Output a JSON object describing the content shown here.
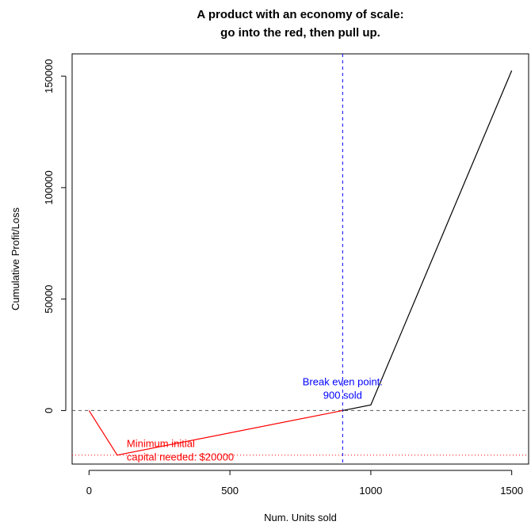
{
  "chart_data": {
    "type": "line",
    "title": "A product with an economy of scale:",
    "subtitle": "go into the red, then pull up.",
    "xlabel": "Num. Units sold",
    "ylabel": "Cumulative Profit/Loss",
    "xlim": [
      -60,
      1560
    ],
    "ylim": [
      -24000,
      160000
    ],
    "xticks": [
      0,
      500,
      1000,
      1500
    ],
    "yticks": [
      0,
      50000,
      100000,
      150000
    ],
    "grid": false,
    "series": [
      {
        "color": "#ff0000",
        "points": [
          [
            0,
            0
          ],
          [
            100,
            -20000
          ],
          [
            900,
            0
          ]
        ]
      },
      {
        "color": "#000000",
        "points": [
          [
            900,
            0
          ],
          [
            1000,
            2500
          ],
          [
            1500,
            152500
          ]
        ]
      }
    ],
    "reference_lines": [
      {
        "orientation": "horizontal",
        "value": 0,
        "style": "dashed",
        "color": "#555555"
      },
      {
        "orientation": "horizontal",
        "value": -20000,
        "style": "dotted",
        "color": "#ff0000"
      },
      {
        "orientation": "vertical",
        "value": 900,
        "style": "dashed",
        "color": "#0000ff"
      }
    ],
    "annotations": [
      {
        "lines": [
          "Break even point:",
          "900 sold"
        ],
        "color": "#0000ff",
        "x": 900,
        "y": 0
      },
      {
        "lines": [
          "Minimum initial",
          "capital needed: $20000"
        ],
        "color": "#ff0000",
        "x": 100,
        "y": -20000
      }
    ]
  }
}
